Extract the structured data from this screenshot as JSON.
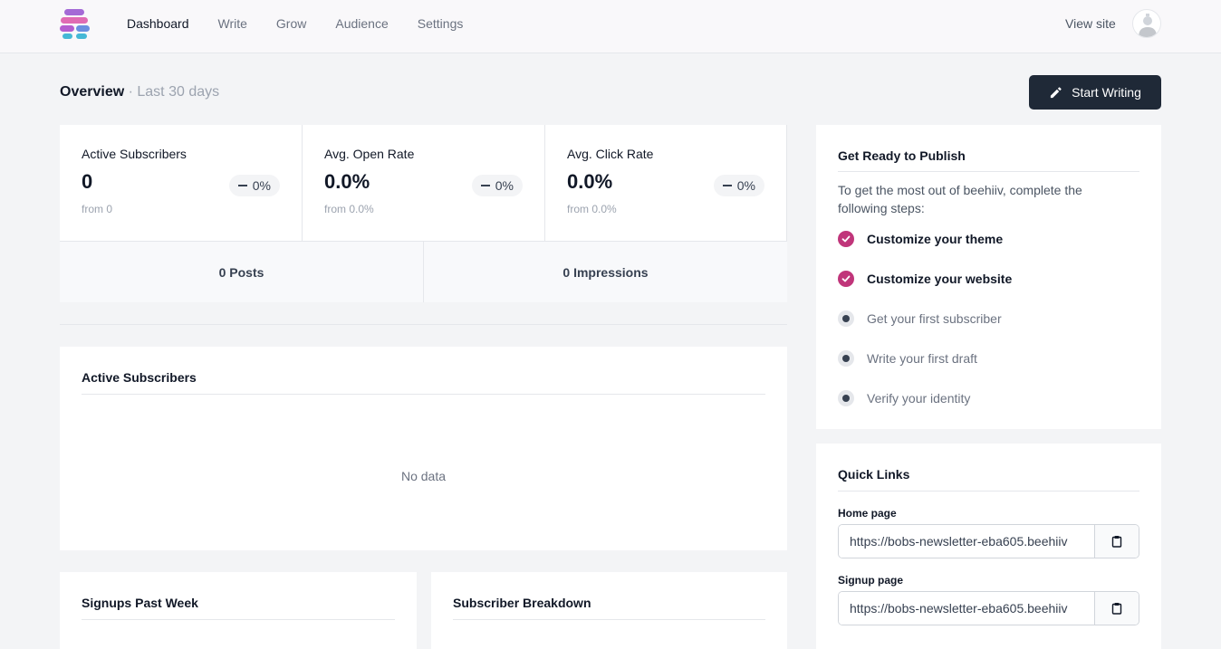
{
  "nav": {
    "items": [
      {
        "label": "Dashboard",
        "active": true
      },
      {
        "label": "Write",
        "active": false
      },
      {
        "label": "Grow",
        "active": false
      },
      {
        "label": "Audience",
        "active": false
      },
      {
        "label": "Settings",
        "active": false
      }
    ],
    "view_site": "View site",
    "logo_icon": "beehiiv-logo-icon",
    "avatar_icon": "user-avatar-icon"
  },
  "header": {
    "title": "Overview",
    "subtitle": "· Last 30 days",
    "start_writing": "Start Writing",
    "start_writing_icon": "pencil-icon"
  },
  "stats": [
    {
      "label": "Active Subscribers",
      "value": "0",
      "change": "0%",
      "from": "from 0"
    },
    {
      "label": "Avg. Open Rate",
      "value": "0.0%",
      "change": "0%",
      "from": "from 0.0%"
    },
    {
      "label": "Avg. Click Rate",
      "value": "0.0%",
      "change": "0%",
      "from": "from 0.0%"
    }
  ],
  "totals": {
    "posts": "0 Posts",
    "impressions": "0 Impressions"
  },
  "active_subscribers": {
    "title": "Active Subscribers",
    "empty": "No data"
  },
  "signups": {
    "title": "Signups Past Week"
  },
  "breakdown": {
    "title": "Subscriber Breakdown"
  },
  "get_ready": {
    "title": "Get Ready to Publish",
    "intro": "To get the most out of beehiiv, complete the following steps:",
    "steps": [
      {
        "label": "Customize your theme",
        "done": true
      },
      {
        "label": "Customize your website",
        "done": true
      },
      {
        "label": "Get your first subscriber",
        "done": false
      },
      {
        "label": "Write your first draft",
        "done": false
      },
      {
        "label": "Verify your identity",
        "done": false
      }
    ]
  },
  "quick_links": {
    "title": "Quick Links",
    "home_label": "Home page",
    "home_url": "https://bobs-newsletter-eba605.beehiiv",
    "signup_label": "Signup page",
    "signup_url": "https://bobs-newsletter-eba605.beehiiv",
    "copy_icon": "clipboard-icon"
  },
  "colors": {
    "accent": "#c0357a",
    "button_dark": "#1f2937",
    "background": "#f3f4f6"
  }
}
